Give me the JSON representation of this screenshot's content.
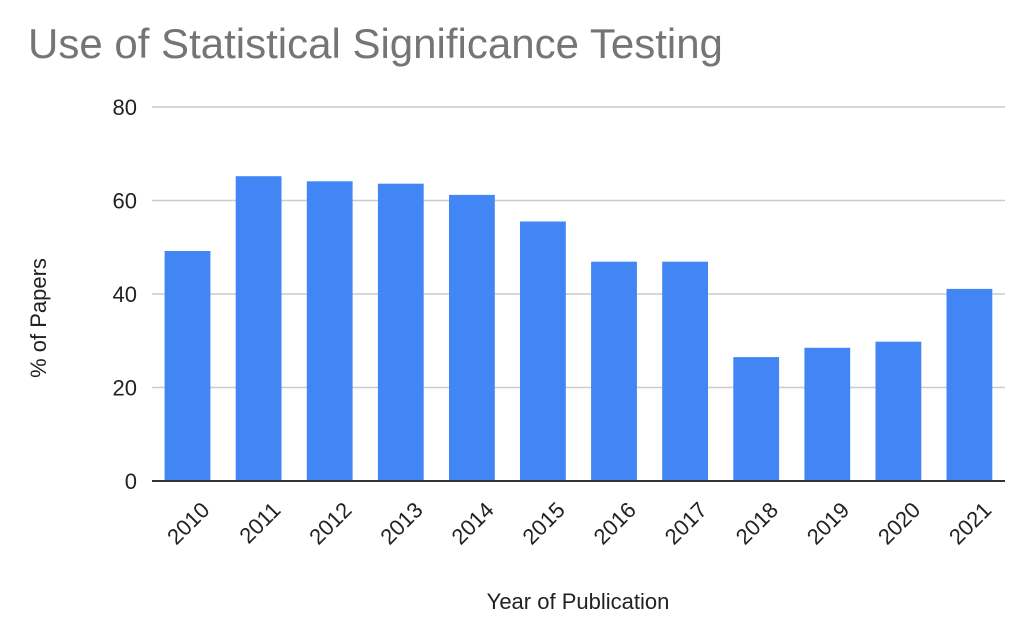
{
  "chart_data": {
    "type": "bar",
    "title": "Use of Statistical Significance Testing",
    "xlabel": "Year of Publication",
    "ylabel": "% of Papers",
    "categories": [
      "2010",
      "2011",
      "2012",
      "2013",
      "2014",
      "2015",
      "2016",
      "2017",
      "2018",
      "2019",
      "2020",
      "2021"
    ],
    "values": [
      49.2,
      65.2,
      64.1,
      63.6,
      61.2,
      55.5,
      46.9,
      46.9,
      26.5,
      28.5,
      29.8,
      41.1
    ],
    "ylim": [
      0,
      80
    ],
    "yticks": [
      "0",
      "20",
      "40",
      "60",
      "80"
    ],
    "grid": true,
    "legend": "none",
    "bar_color": "#4285f4",
    "grid_color": "#cccccc",
    "axis_color": "#333333",
    "title_color": "#757575"
  }
}
